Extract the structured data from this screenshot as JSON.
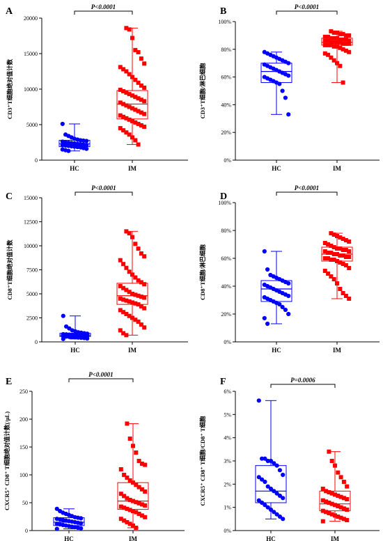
{
  "chart_data": [
    {
      "type": "box-scatter",
      "panel": "A",
      "ylabel": "CD3⁺T细胞绝对值计数",
      "ylim": [
        0,
        20000
      ],
      "yticks": [
        0,
        5000,
        10000,
        15000,
        20000
      ],
      "ytick_labels": [
        "0",
        "5000",
        "10000",
        "15000",
        "20000"
      ],
      "categories": [
        "HC",
        "IM"
      ],
      "pvalue": "P<0.0001",
      "series": [
        {
          "category": "HC",
          "color": "#0000ff",
          "marker": "circle",
          "box": {
            "min": 1300,
            "q1": 1900,
            "median": 2300,
            "q3": 2800,
            "max": 5100
          },
          "points": [
            5100,
            3600,
            3400,
            3200,
            3000,
            2900,
            2800,
            2750,
            2700,
            2600,
            2500,
            2450,
            2400,
            2350,
            2300,
            2250,
            2200,
            2150,
            2100,
            2050,
            2000,
            1950,
            1900,
            1850,
            1800,
            1700,
            1600,
            1500,
            1400,
            1300
          ]
        },
        {
          "category": "IM",
          "color": "#ff0000",
          "marker": "square",
          "box": {
            "min": 2200,
            "q1": 5800,
            "median": 7900,
            "q3": 9800,
            "max": 18600
          },
          "points": [
            18600,
            18400,
            17200,
            15500,
            15200,
            14300,
            13600,
            13100,
            12800,
            12500,
            12100,
            11700,
            11300,
            10900,
            10500,
            10200,
            9900,
            9700,
            9500,
            9300,
            9100,
            8900,
            8700,
            8500,
            8300,
            8100,
            7900,
            7700,
            7500,
            7300,
            7100,
            6900,
            6700,
            6500,
            6300,
            6100,
            5900,
            5700,
            5500,
            5300,
            5100,
            4900,
            4700,
            4500,
            4200,
            3900,
            3600,
            3200,
            2800,
            2200
          ]
        }
      ]
    },
    {
      "type": "box-scatter",
      "panel": "B",
      "ylabel": "CD3⁺T细胞/淋巴细胞",
      "ylim": [
        0,
        100
      ],
      "yticks": [
        0,
        20,
        40,
        60,
        80,
        100
      ],
      "ytick_labels": [
        "0%",
        "20%",
        "40%",
        "60%",
        "80%",
        "100%"
      ],
      "categories": [
        "HC",
        "IM"
      ],
      "pvalue": "P<0.0001",
      "series": [
        {
          "category": "HC",
          "color": "#0000ff",
          "marker": "circle",
          "box": {
            "min": 33,
            "q1": 56,
            "median": 64,
            "q3": 70,
            "max": 78
          },
          "points": [
            78,
            77,
            76,
            75,
            74,
            73,
            72,
            71,
            70,
            69,
            68,
            67,
            66,
            65,
            64,
            63,
            62,
            61,
            60,
            59,
            58,
            57,
            56,
            55,
            50,
            45,
            33
          ]
        },
        {
          "category": "IM",
          "color": "#ff0000",
          "marker": "square",
          "box": {
            "min": 56,
            "q1": 83,
            "median": 85,
            "q3": 88,
            "max": 93
          },
          "points": [
            93,
            92,
            92,
            91,
            91,
            90,
            90,
            89,
            89,
            88,
            88,
            88,
            87,
            87,
            87,
            86,
            86,
            86,
            85,
            85,
            85,
            85,
            84,
            84,
            84,
            83,
            83,
            83,
            82,
            82,
            81,
            80,
            79,
            78,
            77,
            76,
            74,
            72,
            70,
            68,
            56
          ]
        }
      ]
    },
    {
      "type": "box-scatter",
      "panel": "C",
      "ylabel": "CD8⁺T细胞绝对值计数",
      "ylim": [
        0,
        15000
      ],
      "yticks": [
        0,
        2500,
        5000,
        7500,
        10000,
        12500,
        15000
      ],
      "ytick_labels": [
        "0",
        "2500",
        "5000",
        "7500",
        "10000",
        "12500",
        "15000"
      ],
      "categories": [
        "HC",
        "IM"
      ],
      "pvalue": "P<0.0001",
      "series": [
        {
          "category": "HC",
          "color": "#0000ff",
          "marker": "circle",
          "box": {
            "min": 300,
            "q1": 550,
            "median": 700,
            "q3": 900,
            "max": 2700
          },
          "points": [
            2700,
            1600,
            1400,
            1200,
            1100,
            1000,
            950,
            900,
            850,
            800,
            780,
            750,
            720,
            700,
            680,
            650,
            620,
            600,
            580,
            550,
            520,
            500,
            480,
            450,
            420,
            400,
            350,
            300
          ]
        },
        {
          "category": "IM",
          "color": "#ff0000",
          "marker": "square",
          "box": {
            "min": 700,
            "q1": 3900,
            "median": 4800,
            "q3": 6100,
            "max": 11500
          },
          "points": [
            11500,
            11300,
            10900,
            10200,
            9700,
            9200,
            8900,
            8500,
            8100,
            7700,
            7300,
            7000,
            6700,
            6400,
            6200,
            6000,
            5800,
            5600,
            5400,
            5200,
            5000,
            4900,
            4800,
            4700,
            4600,
            4500,
            4400,
            4300,
            4200,
            4100,
            4000,
            3900,
            3700,
            3500,
            3300,
            3100,
            2900,
            2700,
            2500,
            2300,
            2100,
            1800,
            1500,
            1200,
            900,
            700
          ]
        }
      ]
    },
    {
      "type": "box-scatter",
      "panel": "D",
      "ylabel": "CD8⁺T细胞/淋巴细胞",
      "ylim": [
        0,
        100
      ],
      "yticks": [
        0,
        20,
        40,
        60,
        80,
        100
      ],
      "ytick_labels": [
        "0%",
        "20%",
        "40%",
        "60%",
        "80%",
        "100%"
      ],
      "categories": [
        "HC",
        "IM"
      ],
      "pvalue": "P<0.0001",
      "series": [
        {
          "category": "HC",
          "color": "#0000ff",
          "marker": "circle",
          "box": {
            "min": 13,
            "q1": 29,
            "median": 38,
            "q3": 44,
            "max": 65
          },
          "points": [
            65,
            52,
            48,
            47,
            46,
            45,
            44,
            43,
            42,
            41,
            40,
            39,
            38,
            37,
            36,
            35,
            34,
            33,
            32,
            31,
            30,
            29,
            28,
            27,
            25,
            23,
            20,
            17,
            13
          ]
        },
        {
          "category": "IM",
          "color": "#ff0000",
          "marker": "square",
          "box": {
            "min": 31,
            "q1": 58,
            "median": 63,
            "q3": 68,
            "max": 78
          },
          "points": [
            78,
            77,
            76,
            75,
            74,
            73,
            72,
            71,
            70,
            69,
            68,
            67,
            67,
            66,
            66,
            65,
            65,
            64,
            64,
            63,
            63,
            62,
            62,
            61,
            61,
            60,
            60,
            59,
            59,
            58,
            57,
            56,
            55,
            53,
            51,
            49,
            47,
            45,
            42,
            38,
            35,
            33,
            31
          ]
        }
      ]
    },
    {
      "type": "box-scatter",
      "panel": "E",
      "ylabel": "CXCR5⁺ CD8⁺ T细胞绝对值计数(/μL)",
      "ylim": [
        0,
        250
      ],
      "yticks": [
        0,
        50,
        100,
        150,
        200,
        250
      ],
      "ytick_labels": [
        "0",
        "50",
        "100",
        "150",
        "200",
        "250"
      ],
      "categories": [
        "HC",
        "IM"
      ],
      "pvalue": "P<0.0001",
      "series": [
        {
          "category": "HC",
          "color": "#0000ff",
          "marker": "circle",
          "box": {
            "min": 3,
            "q1": 9,
            "median": 15,
            "q3": 23,
            "max": 39
          },
          "points": [
            39,
            35,
            32,
            30,
            28,
            26,
            24,
            23,
            22,
            21,
            20,
            19,
            18,
            17,
            16,
            15,
            14,
            13,
            12,
            11,
            10,
            9,
            8,
            7,
            6,
            5,
            4,
            3
          ]
        },
        {
          "category": "IM",
          "color": "#ff0000",
          "marker": "square",
          "box": {
            "min": 5,
            "q1": 38,
            "median": 53,
            "q3": 86,
            "max": 192
          },
          "points": [
            192,
            165,
            152,
            140,
            125,
            120,
            118,
            110,
            100,
            95,
            90,
            86,
            82,
            78,
            74,
            70,
            66,
            62,
            58,
            55,
            53,
            51,
            49,
            47,
            45,
            43,
            41,
            39,
            37,
            35,
            33,
            30,
            27,
            24,
            21,
            18,
            15,
            12,
            9,
            5
          ]
        }
      ]
    },
    {
      "type": "box-scatter",
      "panel": "F",
      "ylabel": "CXCR5⁺ CD8⁺ T细胞/CD8⁺ T细胞",
      "ylim": [
        0,
        6
      ],
      "yticks": [
        0,
        1,
        2,
        3,
        4,
        5,
        6
      ],
      "ytick_labels": [
        "0%",
        "1%",
        "2%",
        "3%",
        "4%",
        "5%",
        "6%"
      ],
      "categories": [
        "HC",
        "IM"
      ],
      "pvalue": "P=0.0006",
      "series": [
        {
          "category": "HC",
          "color": "#0000ff",
          "marker": "circle",
          "box": {
            "min": 0.5,
            "q1": 1.2,
            "median": 1.7,
            "q3": 2.8,
            "max": 5.6
          },
          "points": [
            5.6,
            3.1,
            3.1,
            3.0,
            3.0,
            2.9,
            2.8,
            2.6,
            2.4,
            2.3,
            2.2,
            2.1,
            1.9,
            1.8,
            1.7,
            1.6,
            1.5,
            1.4,
            1.3,
            1.2,
            1.1,
            1.0,
            0.9,
            0.8,
            0.7,
            0.6,
            0.5
          ]
        },
        {
          "category": "IM",
          "color": "#ff0000",
          "marker": "square",
          "box": {
            "min": 0.4,
            "q1": 0.85,
            "median": 1.15,
            "q3": 1.7,
            "max": 3.4
          },
          "points": [
            3.4,
            3.0,
            2.8,
            2.5,
            2.3,
            2.1,
            1.9,
            1.8,
            1.7,
            1.65,
            1.6,
            1.55,
            1.5,
            1.45,
            1.4,
            1.35,
            1.3,
            1.25,
            1.2,
            1.15,
            1.1,
            1.05,
            1.0,
            0.95,
            0.9,
            0.85,
            0.8,
            0.75,
            0.7,
            0.65,
            0.6,
            0.55,
            0.5,
            0.45,
            0.4
          ]
        }
      ]
    }
  ]
}
